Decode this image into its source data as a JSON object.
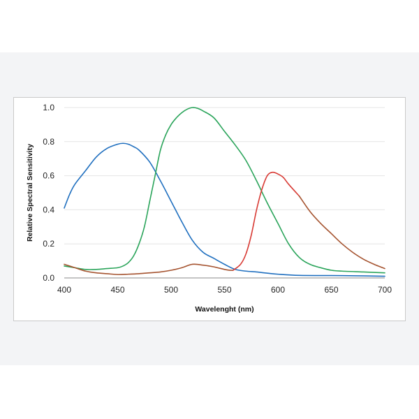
{
  "colors": {
    "blue": "#1f6fbf",
    "green": "#2aa45a",
    "red": "#d83a34",
    "brown": "#a5532f",
    "grid": "#e4e4e4",
    "axis": "#888888"
  },
  "chart_data": {
    "type": "line",
    "xlabel": "Wavelenght (nm)",
    "ylabel": "Relative Spectral Sensitivity",
    "xlim": [
      400,
      700
    ],
    "ylim": [
      0,
      1.0
    ],
    "x_ticks": [
      "400",
      "450",
      "500",
      "550",
      "600",
      "650",
      "700"
    ],
    "y_ticks": [
      "0.0",
      "0.2",
      "0.4",
      "0.6",
      "0.8",
      "1.0"
    ],
    "grid": "horizontal",
    "legend": "none",
    "series": [
      {
        "color": "blue",
        "x": [
          400,
          405,
          410,
          420,
          430,
          440,
          450,
          455,
          460,
          465,
          470,
          480,
          490,
          500,
          510,
          520,
          530,
          540,
          550,
          560,
          570,
          580,
          590,
          600,
          620,
          650,
          680,
          700
        ],
        "y": [
          0.41,
          0.49,
          0.55,
          0.63,
          0.71,
          0.76,
          0.785,
          0.79,
          0.785,
          0.77,
          0.75,
          0.68,
          0.57,
          0.45,
          0.33,
          0.22,
          0.15,
          0.115,
          0.08,
          0.05,
          0.04,
          0.035,
          0.028,
          0.022,
          0.015,
          0.014,
          0.012,
          0.01
        ]
      },
      {
        "color": "green",
        "x": [
          400,
          410,
          420,
          430,
          440,
          450,
          455,
          460,
          465,
          470,
          475,
          480,
          485,
          490,
          495,
          500,
          505,
          510,
          515,
          520,
          525,
          530,
          540,
          550,
          560,
          570,
          580,
          590,
          600,
          610,
          620,
          630,
          640,
          650,
          660,
          680,
          700
        ],
        "y": [
          0.07,
          0.06,
          0.05,
          0.05,
          0.055,
          0.06,
          0.07,
          0.09,
          0.13,
          0.2,
          0.3,
          0.45,
          0.6,
          0.75,
          0.84,
          0.9,
          0.94,
          0.97,
          0.99,
          1.0,
          0.995,
          0.98,
          0.94,
          0.86,
          0.78,
          0.69,
          0.57,
          0.44,
          0.32,
          0.2,
          0.12,
          0.08,
          0.06,
          0.045,
          0.04,
          0.035,
          0.03
        ]
      },
      {
        "color": "brown",
        "x": [
          400,
          410,
          420,
          430,
          440,
          450,
          460,
          470,
          480,
          490,
          500,
          510,
          520,
          530,
          540,
          550,
          555,
          558
        ],
        "y": [
          0.08,
          0.06,
          0.04,
          0.03,
          0.025,
          0.02,
          0.022,
          0.025,
          0.03,
          0.035,
          0.045,
          0.06,
          0.08,
          0.075,
          0.065,
          0.05,
          0.045,
          0.045
        ]
      },
      {
        "color": "red",
        "x": [
          558,
          565,
          570,
          575,
          580,
          585,
          590,
          595,
          600,
          605,
          610,
          620
        ],
        "y": [
          0.045,
          0.08,
          0.14,
          0.25,
          0.4,
          0.52,
          0.6,
          0.62,
          0.61,
          0.59,
          0.55,
          0.48
        ]
      },
      {
        "color": "brown",
        "x": [
          620,
          630,
          640,
          650,
          660,
          670,
          680,
          690,
          700
        ],
        "y": [
          0.48,
          0.39,
          0.32,
          0.26,
          0.2,
          0.15,
          0.11,
          0.08,
          0.055
        ]
      }
    ]
  }
}
